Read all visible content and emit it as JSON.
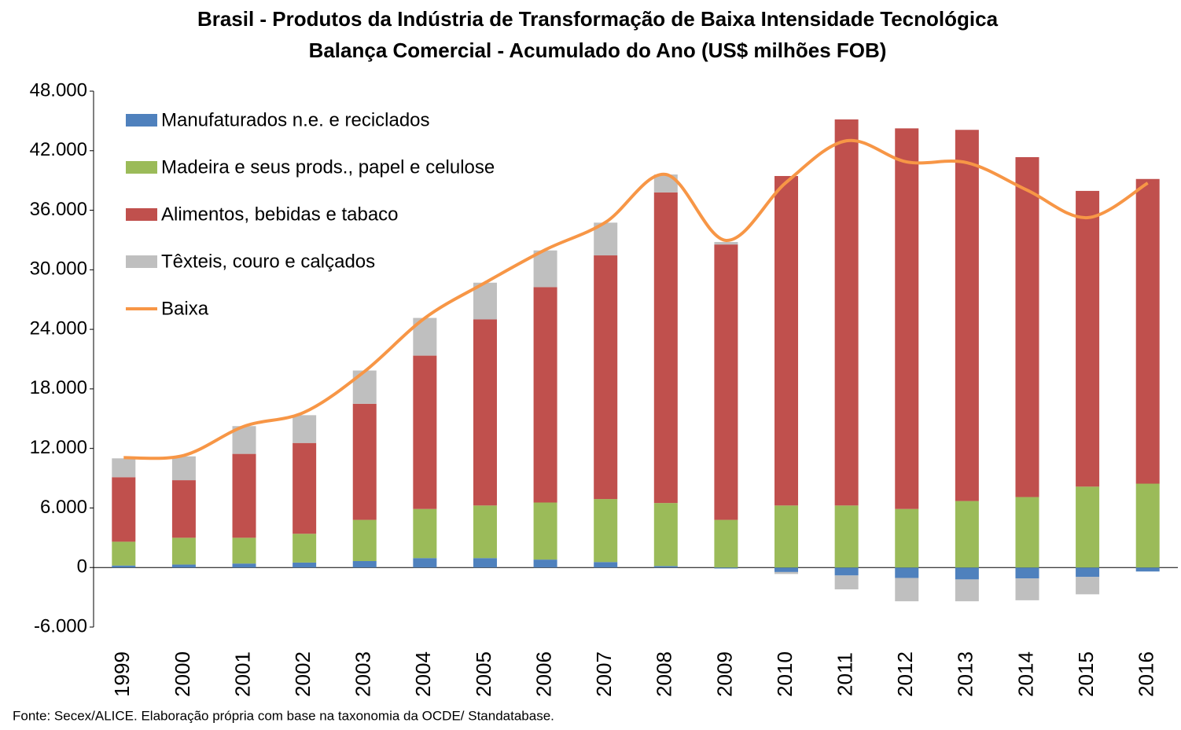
{
  "chart_data": {
    "type": "bar",
    "title": "Brasil - Produtos da Indústria de Transformação de Baixa Intensidade Tecnológica",
    "subtitle": "Balança Comercial - Acumulado do Ano (US$ milhões FOB)",
    "source": "Fonte: Secex/ALICE. Elaboração própria com base na taxonomia da OCDE/ Standatabase.",
    "stacked": true,
    "categories": [
      "1999",
      "2000",
      "2001",
      "2002",
      "2003",
      "2004",
      "2005",
      "2006",
      "2007",
      "2008",
      "2009",
      "2010",
      "2011",
      "2012",
      "2013",
      "2014",
      "2015",
      "2016"
    ],
    "series": [
      {
        "name": "Manufaturados n.e. e reciclados",
        "color": "#4f81bd",
        "values": [
          200,
          300,
          400,
          500,
          650,
          950,
          950,
          800,
          550,
          150,
          -100,
          -450,
          -800,
          -1050,
          -1200,
          -1100,
          -950,
          -400
        ]
      },
      {
        "name": "Madeira e seus prods., papel e celulose",
        "color": "#9bbb59",
        "values": [
          2400,
          2700,
          2600,
          2900,
          4150,
          4950,
          5300,
          5750,
          6350,
          6350,
          4800,
          6250,
          6250,
          5900,
          6700,
          7100,
          8150,
          8450
        ]
      },
      {
        "name": "Alimentos, bebidas e tabaco",
        "color": "#c0504d",
        "values": [
          6500,
          5800,
          8450,
          9150,
          11700,
          15450,
          18750,
          21700,
          24550,
          31300,
          27750,
          33200,
          38900,
          38350,
          37400,
          34250,
          29800,
          30700
        ]
      },
      {
        "name": "Têxteis, couro e calçados",
        "color": "#bfbfbf",
        "values": [
          1900,
          2400,
          2800,
          2800,
          3350,
          3800,
          3700,
          3700,
          3300,
          1800,
          250,
          -200,
          -1400,
          -2350,
          -2200,
          -2200,
          -1750,
          0
        ]
      },
      {
        "name": "Baixa",
        "type": "line",
        "color": "#f79646",
        "values": [
          11070,
          11300,
          14230,
          15650,
          19770,
          25140,
          28700,
          32020,
          34790,
          39610,
          32960,
          38820,
          43000,
          40870,
          40790,
          38020,
          35250,
          38740
        ]
      }
    ],
    "ylim": [
      -6000,
      48000
    ],
    "yticks": [
      {
        "value": -6000,
        "label": "-6.000"
      },
      0,
      {
        "value": 6000,
        "label": "6.000"
      },
      {
        "value": 12000,
        "label": "12.000"
      },
      {
        "value": 18000,
        "label": "18.000"
      },
      {
        "value": 24000,
        "label": "24.000"
      },
      {
        "value": 30000,
        "label": "30.000"
      },
      {
        "value": 36000,
        "label": "36.000"
      },
      {
        "value": 42000,
        "label": "42.000"
      },
      {
        "value": 48000,
        "label": "48.000"
      }
    ],
    "grid": false,
    "legend": "top-left"
  }
}
